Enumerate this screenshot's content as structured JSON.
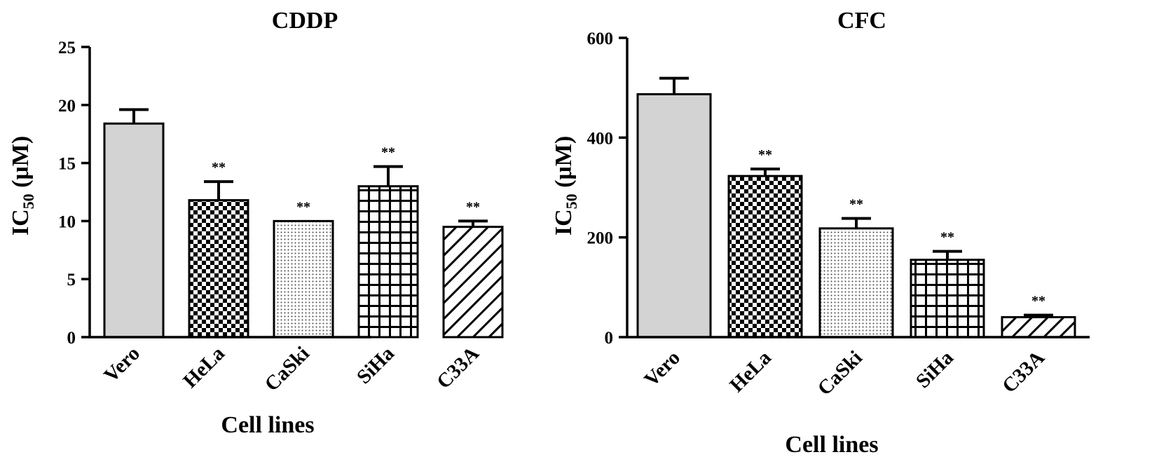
{
  "chart_data": [
    {
      "type": "bar",
      "title": "CDDP",
      "xlabel": "Cell lines",
      "ylabel": {
        "main": "IC",
        "sub": "50",
        "unit": " (μM)"
      },
      "ylim": [
        0,
        25
      ],
      "yticks": [
        0,
        5,
        10,
        15,
        20,
        25
      ],
      "categories": [
        "Vero",
        "HeLa",
        "CaSki",
        "SiHa",
        "C33A"
      ],
      "values": [
        18.4,
        11.8,
        10.0,
        13.0,
        9.5
      ],
      "errors": [
        1.2,
        1.6,
        0.0,
        1.7,
        0.5
      ],
      "significance": [
        "",
        "**",
        "**",
        "**",
        "**"
      ],
      "patterns": [
        "solid-gray",
        "checker",
        "dots",
        "grid",
        "diagonal"
      ],
      "grid": false
    },
    {
      "type": "bar",
      "title": "CFC",
      "xlabel": "Cell lines",
      "ylabel": {
        "main": "IC",
        "sub": "50",
        "unit": " (μM)"
      },
      "ylim": [
        0,
        600
      ],
      "yticks": [
        0,
        200,
        400,
        600
      ],
      "categories": [
        "Vero",
        "HeLa",
        "CaSki",
        "SiHa",
        "C33A"
      ],
      "values": [
        487,
        323,
        218,
        155,
        40
      ],
      "errors": [
        32,
        14,
        20,
        17,
        4
      ],
      "significance": [
        "",
        "**",
        "**",
        "**",
        "**"
      ],
      "patterns": [
        "solid-gray",
        "checker",
        "dots",
        "grid",
        "diagonal"
      ],
      "grid": false
    }
  ],
  "colors": {
    "bar_fill": "#d3d3d3",
    "ink": "#000000",
    "background": "#ffffff"
  }
}
